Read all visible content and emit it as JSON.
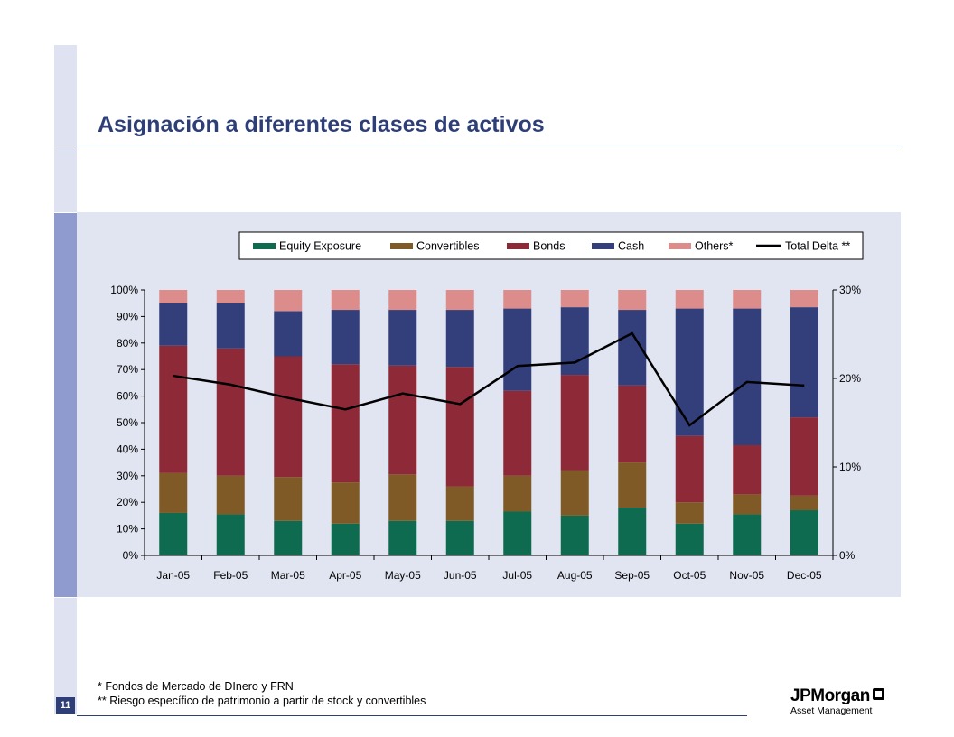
{
  "page": {
    "title": "Asignación a diferentes clases de activos",
    "page_number": "11",
    "footnotes": [
      "*  Fondos de Mercado de DInero y  FRN",
      "** Riesgo específico de patrimonio a partir de stock y  convertibles"
    ],
    "logo": {
      "name": "JPMorgan",
      "sub": "Asset Management",
      "icon": "jpmorgan-octagon-icon"
    }
  },
  "chart_data": {
    "type": "bar",
    "stacked": true,
    "categories": [
      "Jan-05",
      "Feb-05",
      "Mar-05",
      "Apr-05",
      "May-05",
      "Jun-05",
      "Jul-05",
      "Aug-05",
      "Sep-05",
      "Oct-05",
      "Nov-05",
      "Dec-05"
    ],
    "series": [
      {
        "name": "Equity Exposure",
        "color": "#0f6b50",
        "values": [
          16,
          15.5,
          13,
          12,
          13,
          13,
          16.5,
          15,
          18,
          12,
          15.5,
          17
        ]
      },
      {
        "name": "Convertibles",
        "color": "#7f5a26",
        "values": [
          15,
          14.5,
          16.5,
          15.5,
          17.5,
          13,
          13.5,
          17,
          17,
          8,
          7.5,
          5.5
        ]
      },
      {
        "name": "Bonds",
        "color": "#8e2a37",
        "values": [
          48,
          48,
          45.5,
          44.5,
          41,
          45,
          32,
          36,
          29,
          25,
          18.5,
          29.5
        ]
      },
      {
        "name": "Cash",
        "color": "#323f7a",
        "values": [
          16,
          17,
          17,
          20.5,
          21,
          21.5,
          31,
          25.5,
          28.5,
          48,
          51.5,
          41.5
        ]
      },
      {
        "name": "Others*",
        "color": "#dd8c8c",
        "values": [
          5,
          5,
          8,
          7.5,
          7.5,
          7.5,
          7,
          6.5,
          7.5,
          7,
          7,
          6.5
        ]
      }
    ],
    "line_series": {
      "name": "Total Delta **",
      "color": "#000000",
      "axis": "right",
      "values": [
        20.3,
        19.3,
        17.8,
        16.5,
        18.3,
        17.1,
        21.4,
        21.8,
        25.1,
        14.7,
        19.6,
        19.2
      ]
    },
    "y_left": {
      "ticks": [
        "0%",
        "10%",
        "20%",
        "30%",
        "40%",
        "50%",
        "60%",
        "70%",
        "80%",
        "90%",
        "100%"
      ],
      "range": [
        0,
        100
      ]
    },
    "y_right": {
      "ticks": [
        "0%",
        "10%",
        "20%",
        "30%"
      ],
      "range": [
        0,
        30
      ]
    },
    "legend": [
      "Equity Exposure",
      "Convertibles",
      "Bonds",
      "Cash",
      "Others*",
      "Total Delta **"
    ],
    "legend_position": "top-right",
    "grid": false
  }
}
